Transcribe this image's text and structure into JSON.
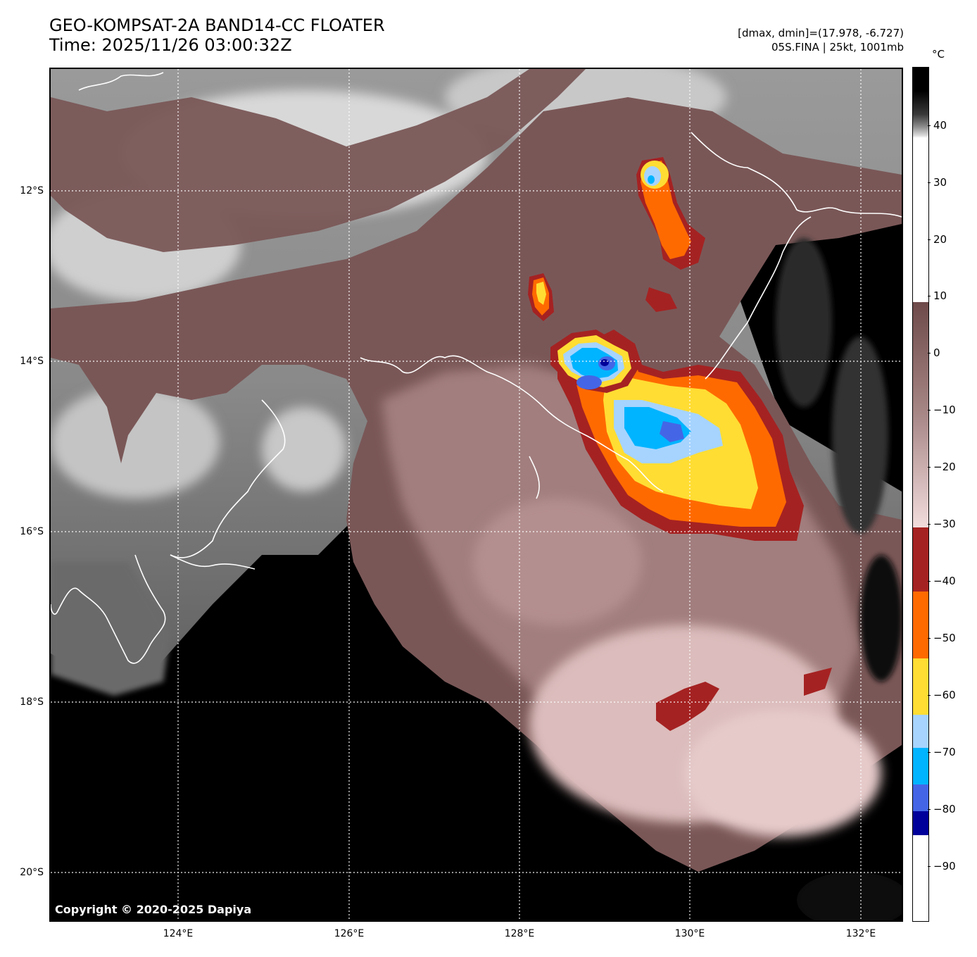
{
  "header": {
    "title_line1": "GEO-KOMPSAT-2A BAND14-CC FLOATER",
    "title_line2": "Time: 2025/11/26 03:00:32Z",
    "info_line1": "[dmax, dmin]=(17.978, -6.727)",
    "info_line2": "05S.FINA | 25kt, 1001mb"
  },
  "map": {
    "lat_labels": [
      "12°S",
      "14°S",
      "16°S",
      "18°S",
      "20°S"
    ],
    "lon_labels": [
      "124°E",
      "126°E",
      "128°E",
      "130°E",
      "132°E"
    ],
    "copyright": "Copyright © 2020-2025 Dapiya"
  },
  "colorbar": {
    "unit": "°C",
    "ticks": [
      "40",
      "30",
      "20",
      "10",
      "0",
      "−10",
      "−20",
      "−30",
      "−40",
      "−50",
      "−60",
      "−70",
      "−80",
      "−90"
    ],
    "colors": {
      "neg30_40": "#a52222",
      "neg40_50": "#ff6a00",
      "neg50_60": "#ffdd33",
      "neg60_65": "#a6d4ff",
      "neg65_72": "#00b4ff",
      "neg72_77": "#4466e6",
      "neg77_80": "#00009a",
      "below": "#ffffff"
    }
  }
}
